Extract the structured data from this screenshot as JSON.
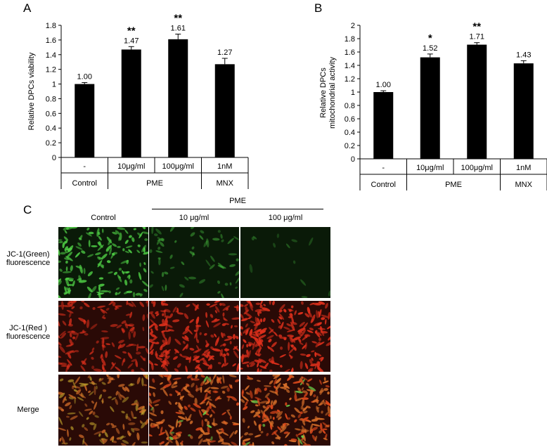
{
  "panels": {
    "a": {
      "label": "A"
    },
    "b": {
      "label": "B"
    },
    "c": {
      "label": "C"
    }
  },
  "chart_data": [
    {
      "type": "bar",
      "panel": "A",
      "ylabel": "Relative DPCs viability",
      "ylim": [
        0,
        1.8
      ],
      "yticks": [
        "0",
        "0.2",
        "0.4",
        "0.6",
        "0.8",
        "1",
        "1.2",
        "1.4",
        "1.6",
        "1.8"
      ],
      "categories": [
        "-",
        "10μg/ml",
        "100μg/ml",
        "1nM"
      ],
      "groups": [
        "Control",
        "PME",
        "MNX"
      ],
      "values": [
        1.0,
        1.47,
        1.61,
        1.27
      ],
      "errors": [
        0.02,
        0.04,
        0.07,
        0.08
      ],
      "data_labels": [
        "1.00",
        "1.47",
        "1.61",
        "1.27"
      ],
      "significance": [
        "",
        "**",
        "**",
        ""
      ]
    },
    {
      "type": "bar",
      "panel": "B",
      "ylabel_lines": [
        "Relative DPCs",
        "mitochondrial activity"
      ],
      "ylim": [
        0,
        2
      ],
      "yticks": [
        "0",
        "0.2",
        "0.4",
        "0.6",
        "0.8",
        "1",
        "1.2",
        "1.4",
        "1.6",
        "1.8",
        "2"
      ],
      "categories": [
        "-",
        "10μg/ml",
        "100μg/ml",
        "1nM"
      ],
      "groups": [
        "Control",
        "PME",
        "MNX"
      ],
      "values": [
        1.0,
        1.52,
        1.71,
        1.43
      ],
      "errors": [
        0.02,
        0.05,
        0.03,
        0.04
      ],
      "data_labels": [
        "1.00",
        "1.52",
        "1.71",
        "1.43"
      ],
      "significance": [
        "",
        "*",
        "**",
        ""
      ]
    }
  ],
  "micrographs": {
    "pme_header": "PME",
    "columns": [
      "Control",
      "10 μg/ml",
      "100 μg/ml"
    ],
    "rows": [
      {
        "label_lines": [
          "JC-1(Green)",
          "fluorescence"
        ],
        "base_color": "#0a1a08",
        "cell_colors": [
          "#3fae3a",
          "#2a7a28",
          "#153f14"
        ],
        "cell_color_hex": "#4fcf45"
      },
      {
        "label_lines": [
          "JC-1(Red )",
          "fluorescence"
        ],
        "base_color": "#2a0a06",
        "cell_color_hex": "#e0301c"
      },
      {
        "label_lines": [
          "Merge"
        ],
        "base_color": "#2a0a06",
        "cell_color_hex": "#d8702a"
      }
    ]
  }
}
